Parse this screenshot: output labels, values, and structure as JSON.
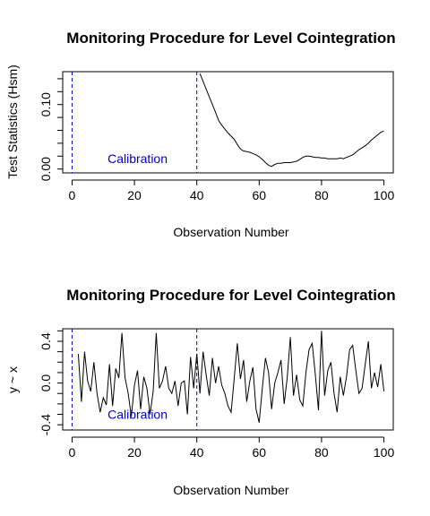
{
  "chart_data": [
    {
      "type": "line",
      "title": "Monitoring Procedure for Level Cointegration",
      "xlabel": "Observation Number",
      "ylabel": "Test Statistics (Hsm)",
      "xlim": [
        -3,
        103
      ],
      "ylim": [
        -0.006,
        0.151
      ],
      "xticks": [
        0,
        20,
        40,
        60,
        80,
        100
      ],
      "yticks": [
        0.0,
        0.1
      ],
      "ytick_labels": [
        "0.00",
        "0.10"
      ],
      "line_color": "#000000",
      "vlines": [
        0,
        40
      ],
      "vline_color": "#0000cc",
      "annotation": {
        "text": "Calibration",
        "x": 21,
        "y": 0.016,
        "color": "#0000cc"
      },
      "x": [
        41,
        42,
        43,
        44,
        45,
        46,
        47,
        48,
        49,
        50,
        51,
        52,
        53,
        54,
        55,
        56,
        57,
        58,
        59,
        60,
        61,
        62,
        63,
        64,
        65,
        66,
        67,
        68,
        69,
        70,
        71,
        72,
        73,
        74,
        75,
        76,
        77,
        78,
        79,
        80,
        81,
        82,
        83,
        84,
        85,
        86,
        87,
        88,
        89,
        90,
        91,
        92,
        93,
        94,
        95,
        96,
        97,
        98,
        99,
        100
      ],
      "y": [
        0.148,
        0.136,
        0.124,
        0.112,
        0.1,
        0.088,
        0.075,
        0.068,
        0.062,
        0.056,
        0.051,
        0.046,
        0.038,
        0.031,
        0.028,
        0.027,
        0.026,
        0.024,
        0.022,
        0.019,
        0.015,
        0.01,
        0.006,
        0.004,
        0.007,
        0.009,
        0.009,
        0.01,
        0.01,
        0.01,
        0.011,
        0.012,
        0.015,
        0.018,
        0.02,
        0.02,
        0.019,
        0.018,
        0.018,
        0.017,
        0.017,
        0.016,
        0.016,
        0.016,
        0.016,
        0.017,
        0.016,
        0.018,
        0.02,
        0.022,
        0.026,
        0.03,
        0.033,
        0.036,
        0.04,
        0.045,
        0.049,
        0.053,
        0.057,
        0.059
      ]
    },
    {
      "type": "line",
      "title": "Monitoring Procedure for Level Cointegration",
      "xlabel": "Observation Number",
      "ylabel": "y ~ x",
      "xlim": [
        -3,
        103
      ],
      "ylim": [
        -0.45,
        0.52
      ],
      "xticks": [
        0,
        20,
        40,
        60,
        80,
        100
      ],
      "yticks": [
        -0.4,
        0.0,
        0.4
      ],
      "ytick_labels": [
        "-0.4",
        "0.0",
        "0.4"
      ],
      "line_color": "#000000",
      "vlines": [
        0,
        40
      ],
      "vline_color": "#0000cc",
      "annotation": {
        "text": "Calibration",
        "x": 21,
        "y": -0.3,
        "color": "#0000cc"
      },
      "x": [
        2,
        3,
        4,
        5,
        6,
        7,
        8,
        9,
        10,
        11,
        12,
        13,
        14,
        15,
        16,
        17,
        18,
        19,
        20,
        21,
        22,
        23,
        24,
        25,
        26,
        27,
        28,
        29,
        30,
        31,
        32,
        33,
        34,
        35,
        36,
        37,
        38,
        39,
        40,
        41,
        42,
        43,
        44,
        45,
        46,
        47,
        48,
        49,
        50,
        51,
        52,
        53,
        54,
        55,
        56,
        57,
        58,
        59,
        60,
        61,
        62,
        63,
        64,
        65,
        66,
        67,
        68,
        69,
        70,
        71,
        72,
        73,
        74,
        75,
        76,
        77,
        78,
        79,
        80,
        81,
        82,
        83,
        84,
        85,
        86,
        87,
        88,
        89,
        90,
        91,
        92,
        93,
        94,
        95,
        96,
        97,
        98,
        99,
        100
      ],
      "y": [
        0.28,
        -0.18,
        0.3,
        0.02,
        -0.08,
        0.2,
        -0.1,
        -0.28,
        -0.14,
        -0.21,
        0.18,
        -0.22,
        0.14,
        0.05,
        0.48,
        0.05,
        -0.1,
        -0.32,
        -0.02,
        0.12,
        -0.25,
        0.06,
        -0.05,
        -0.3,
        -0.08,
        0.48,
        -0.05,
        0.02,
        0.16,
        -0.05,
        -0.1,
        0.02,
        -0.22,
        0.0,
        0.02,
        -0.3,
        0.25,
        -0.05,
        0.28,
        -0.1,
        0.3,
        0.08,
        -0.12,
        0.24,
        0.0,
        0.16,
        -0.02,
        -0.1,
        -0.22,
        -0.28,
        0.05,
        0.38,
        0.04,
        0.22,
        -0.18,
        0.02,
        0.15,
        -0.25,
        -0.38,
        -0.05,
        0.24,
        0.1,
        -0.25,
        0.0,
        0.1,
        0.22,
        -0.2,
        0.05,
        0.44,
        -0.12,
        0.08,
        -0.16,
        -0.22,
        0.1,
        0.32,
        0.38,
        0.08,
        -0.26,
        0.5,
        -0.12,
        0.12,
        0.2,
        -0.1,
        -0.28,
        0.06,
        -0.12,
        0.06,
        0.32,
        0.36,
        0.12,
        -0.1,
        -0.05,
        0.18,
        0.4,
        -0.05,
        0.1,
        -0.04,
        0.18,
        -0.08
      ]
    }
  ]
}
